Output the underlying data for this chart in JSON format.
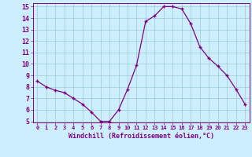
{
  "x": [
    0,
    1,
    2,
    3,
    4,
    5,
    6,
    7,
    8,
    9,
    10,
    11,
    12,
    13,
    14,
    15,
    16,
    17,
    18,
    19,
    20,
    21,
    22,
    23
  ],
  "y": [
    8.5,
    8.0,
    7.7,
    7.5,
    7.0,
    6.5,
    5.8,
    5.0,
    5.0,
    6.0,
    7.8,
    9.9,
    13.7,
    14.2,
    15.0,
    15.0,
    14.8,
    13.5,
    11.5,
    10.5,
    9.8,
    9.0,
    7.8,
    6.5
  ],
  "line_color": "#800080",
  "marker": "+",
  "bg_color": "#cceeff",
  "grid_color": "#99cccc",
  "xlabel": "Windchill (Refroidissement éolien,°C)",
  "xlabel_color": "#800080",
  "tick_color": "#800080",
  "axis_color": "#800080",
  "ylim": [
    5,
    15
  ],
  "xlim": [
    -0.5,
    23.5
  ],
  "yticks": [
    5,
    6,
    7,
    8,
    9,
    10,
    11,
    12,
    13,
    14,
    15
  ],
  "xticks": [
    0,
    1,
    2,
    3,
    4,
    5,
    6,
    7,
    8,
    9,
    10,
    11,
    12,
    13,
    14,
    15,
    16,
    17,
    18,
    19,
    20,
    21,
    22,
    23
  ]
}
